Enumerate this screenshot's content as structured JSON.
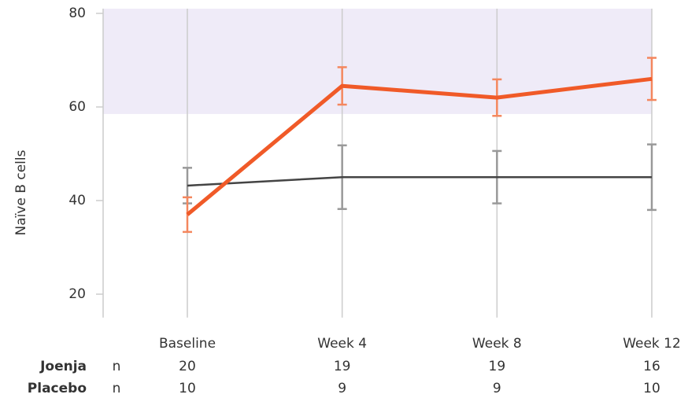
{
  "chart_data": {
    "type": "line",
    "y_label": "Naïve B cells",
    "categories": [
      "Baseline",
      "Week 4",
      "Week 8",
      "Week 12"
    ],
    "ylim": [
      15,
      81
    ],
    "yticks": [
      20,
      40,
      60,
      80
    ],
    "reference_band": {
      "from": 58.5,
      "to": 81,
      "color": "#efebf8"
    },
    "grid": true,
    "n_label": "n",
    "series": [
      {
        "name": "Joenja",
        "color": "#f05a28",
        "error_color": "#f4875e",
        "values": [
          37,
          64.5,
          62,
          66
        ],
        "errors": [
          3.7,
          4,
          3.9,
          4.5
        ],
        "n": [
          20,
          19,
          19,
          16
        ]
      },
      {
        "name": "Placebo",
        "color": "#444444",
        "error_color": "#999999",
        "values": [
          43.2,
          45,
          45,
          45
        ],
        "errors": [
          3.8,
          6.8,
          5.6,
          7
        ],
        "n": [
          10,
          9,
          9,
          10
        ]
      }
    ]
  }
}
